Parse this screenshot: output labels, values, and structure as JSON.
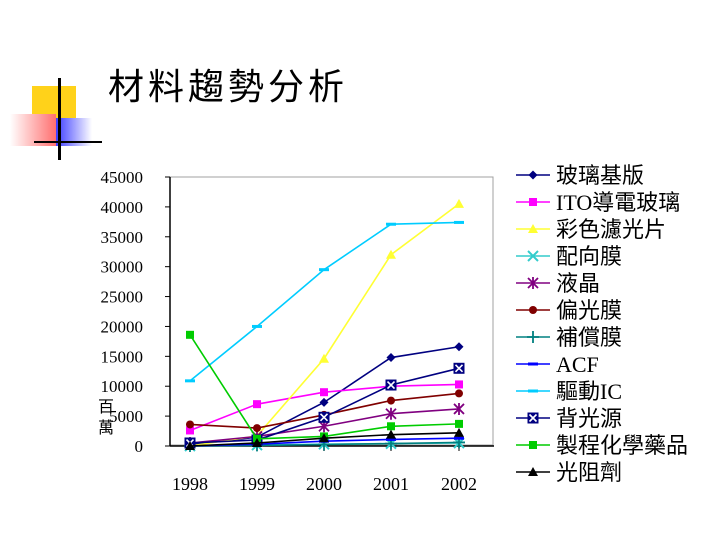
{
  "slide": {
    "title": "材料趨勢分析",
    "y_unit": "百萬"
  },
  "chart_data": {
    "type": "line",
    "title": "",
    "xlabel": "",
    "ylabel": "百萬",
    "categories": [
      "1998",
      "1999",
      "2000",
      "2001",
      "2002"
    ],
    "ylim": [
      0,
      45000
    ],
    "yticks": [
      0,
      5000,
      10000,
      15000,
      20000,
      25000,
      30000,
      35000,
      40000,
      45000
    ],
    "grid": false,
    "legend": "right",
    "series": [
      {
        "name": "玻璃基版",
        "color": "#000080",
        "marker": "diamond",
        "values": [
          200,
          1500,
          7300,
          14800,
          16600
        ]
      },
      {
        "name": "ITO導電玻璃",
        "color": "#ff00ff",
        "marker": "square",
        "values": [
          2600,
          7000,
          9000,
          10000,
          10300
        ]
      },
      {
        "name": "彩色濾光片",
        "color": "#ffff33",
        "marker": "triangle",
        "values": [
          0,
          1700,
          14600,
          32000,
          40500
        ]
      },
      {
        "name": "配向膜",
        "color": "#33cccc",
        "marker": "x",
        "values": [
          0,
          150,
          300,
          400,
          500
        ]
      },
      {
        "name": "液晶",
        "color": "#800080",
        "marker": "star",
        "values": [
          500,
          1600,
          3300,
          5400,
          6200
        ]
      },
      {
        "name": "偏光膜",
        "color": "#800000",
        "marker": "circle",
        "values": [
          3600,
          3000,
          5200,
          7600,
          8800
        ]
      },
      {
        "name": "補償膜",
        "color": "#008080",
        "marker": "plus",
        "values": [
          0,
          100,
          250,
          400,
          600
        ]
      },
      {
        "name": "ACF",
        "color": "#0000ff",
        "marker": "dash",
        "values": [
          0,
          300,
          800,
          1100,
          1300
        ]
      },
      {
        "name": "驅動IC",
        "color": "#00ccff",
        "marker": "dash",
        "values": [
          10900,
          20000,
          29500,
          37100,
          37400
        ]
      },
      {
        "name": "背光源",
        "color": "#000080",
        "marker": "boxx",
        "values": [
          500,
          1000,
          4800,
          10200,
          13000
        ]
      },
      {
        "name": "製程化學藥品",
        "color": "#00cc00",
        "marker": "square",
        "values": [
          18600,
          1200,
          1600,
          3300,
          3700
        ]
      },
      {
        "name": "光阻劑",
        "color": "#000000",
        "marker": "triangle",
        "values": [
          0,
          500,
          1300,
          1900,
          2200
        ]
      }
    ]
  }
}
